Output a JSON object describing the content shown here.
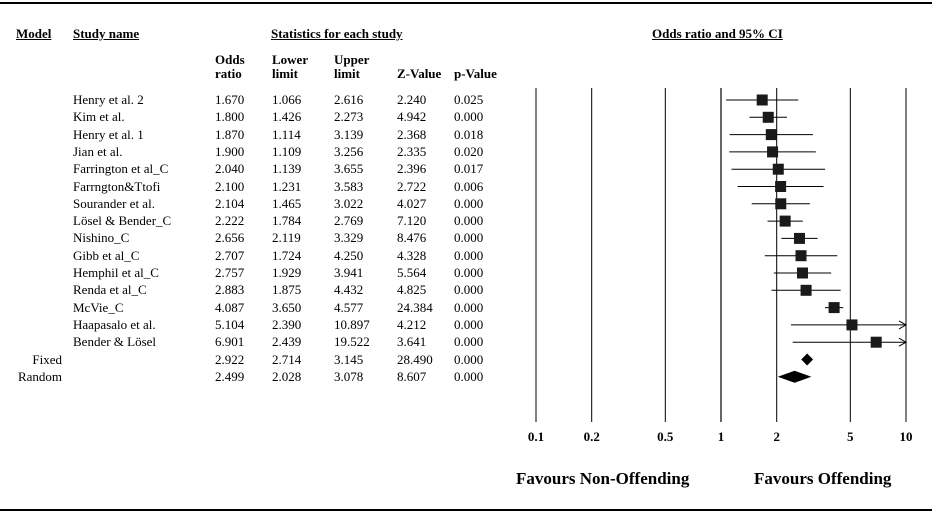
{
  "headers": {
    "model": "Model",
    "study": "Study name",
    "stats": "Statistics for each study",
    "plot": "Odds ratio and 95% CI",
    "odds_l1": "Odds",
    "odds_l2": "ratio",
    "lower_l1": "Lower",
    "lower_l2": "limit",
    "upper_l1": "Upper",
    "upper_l2": "limit",
    "z": "Z-Value",
    "p": "p-Value"
  },
  "footer": {
    "left": "Favours Non-Offending",
    "right": "Favours Offending"
  },
  "chart_data": {
    "type": "forest",
    "xscale": "log",
    "xlim": [
      0.1,
      10
    ],
    "xticks": [
      "0.1",
      "0.2",
      "0.5",
      "1",
      "2",
      "5",
      "10"
    ],
    "xtick_values": [
      0.1,
      0.2,
      0.5,
      1,
      2,
      5,
      10
    ],
    "studies": [
      {
        "name": "Henry et al. 2",
        "or": "1.670",
        "lower": "1.066",
        "upper": "2.616",
        "z": "2.240",
        "p": "0.025"
      },
      {
        "name": "Kim et al.",
        "or": "1.800",
        "lower": "1.426",
        "upper": "2.273",
        "z": "4.942",
        "p": "0.000"
      },
      {
        "name": "Henry et al. 1",
        "or": "1.870",
        "lower": "1.114",
        "upper": "3.139",
        "z": "2.368",
        "p": "0.018"
      },
      {
        "name": "Jian et al.",
        "or": "1.900",
        "lower": "1.109",
        "upper": "3.256",
        "z": "2.335",
        "p": "0.020"
      },
      {
        "name": "Farrington et al_C",
        "or": "2.040",
        "lower": "1.139",
        "upper": "3.655",
        "z": "2.396",
        "p": "0.017"
      },
      {
        "name": "Farrngton&Ttofi",
        "or": "2.100",
        "lower": "1.231",
        "upper": "3.583",
        "z": "2.722",
        "p": "0.006"
      },
      {
        "name": "Sourander et al.",
        "or": "2.104",
        "lower": "1.465",
        "upper": "3.022",
        "z": "4.027",
        "p": "0.000"
      },
      {
        "name": "Lösel & Bender_C",
        "or": "2.222",
        "lower": "1.784",
        "upper": "2.769",
        "z": "7.120",
        "p": "0.000"
      },
      {
        "name": "Nishino_C",
        "or": "2.656",
        "lower": "2.119",
        "upper": "3.329",
        "z": "8.476",
        "p": "0.000"
      },
      {
        "name": "Gibb et al_C",
        "or": "2.707",
        "lower": "1.724",
        "upper": "4.250",
        "z": "4.328",
        "p": "0.000"
      },
      {
        "name": "Hemphil et al_C",
        "or": "2.757",
        "lower": "1.929",
        "upper": "3.941",
        "z": "5.564",
        "p": "0.000"
      },
      {
        "name": "Renda et al_C",
        "or": "2.883",
        "lower": "1.875",
        "upper": "4.432",
        "z": "4.825",
        "p": "0.000"
      },
      {
        "name": "McVie_C",
        "or": "4.087",
        "lower": "3.650",
        "upper": "4.577",
        "z": "24.384",
        "p": "0.000"
      },
      {
        "name": "Haapasalo et al.",
        "or": "5.104",
        "lower": "2.390",
        "upper": "10.897",
        "z": "4.212",
        "p": "0.000"
      },
      {
        "name": "Bender & Lösel",
        "or": "6.901",
        "lower": "2.439",
        "upper": "19.522",
        "z": "3.641",
        "p": "0.000"
      }
    ],
    "summary": [
      {
        "model": "Fixed",
        "or": "2.922",
        "lower": "2.714",
        "upper": "3.145",
        "z": "28.490",
        "p": "0.000"
      },
      {
        "model": "Random",
        "or": "2.499",
        "lower": "2.028",
        "upper": "3.078",
        "z": "8.607",
        "p": "0.000"
      }
    ]
  }
}
